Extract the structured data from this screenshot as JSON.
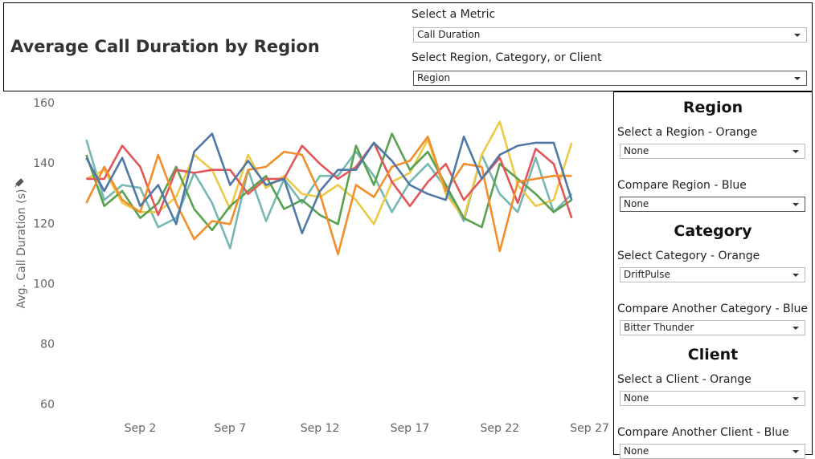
{
  "header": {
    "title": "Average Call Duration by Region"
  },
  "controls": [
    {
      "label": "Select a Metric",
      "value": "Call Duration"
    },
    {
      "label": "Select Region, Category, or Client",
      "value": "Region"
    }
  ],
  "panel": [
    {
      "heading": "Region",
      "filters": [
        {
          "label": "Select a Region - Orange",
          "value": "None"
        },
        {
          "label": "Compare Region - Blue",
          "value": "None"
        }
      ]
    },
    {
      "heading": "Category",
      "filters": [
        {
          "label": "Select Category - Orange",
          "value": "DriftPulse"
        },
        {
          "label": "Compare Another Category - Blue",
          "value": "Bitter Thunder"
        }
      ]
    },
    {
      "heading": "Client",
      "filters": [
        {
          "label": "Select a Client - Orange",
          "value": "None"
        },
        {
          "label": "Compare Another Client - Blue",
          "value": "None"
        }
      ]
    }
  ],
  "chart_data": {
    "type": "line",
    "y_label": "Avg. Call Duration (s)",
    "x": [
      "Aug 30",
      "Aug 31",
      "Sep 1",
      "Sep 2",
      "Sep 3",
      "Sep 4",
      "Sep 5",
      "Sep 6",
      "Sep 7",
      "Sep 8",
      "Sep 9",
      "Sep 10",
      "Sep 11",
      "Sep 12",
      "Sep 13",
      "Sep 14",
      "Sep 15",
      "Sep 16",
      "Sep 17",
      "Sep 18",
      "Sep 19",
      "Sep 20",
      "Sep 21",
      "Sep 22",
      "Sep 23",
      "Sep 24",
      "Sep 25",
      "Sep 26"
    ],
    "xlim": [
      "Aug 29",
      "Sep 28"
    ],
    "xticks": [
      "Sep 2",
      "Sep 7",
      "Sep 12",
      "Sep 17",
      "Sep 22",
      "Sep 27"
    ],
    "ylim": [
      57,
      162
    ],
    "yticks": [
      60,
      80,
      100,
      120,
      140,
      160
    ],
    "grid": false,
    "series": [
      {
        "color": "#76b7b2",
        "values": [
          148,
          128,
          133,
          132,
          119,
          122,
          137,
          127,
          112,
          138,
          121,
          135,
          127,
          136,
          136,
          144,
          136,
          124,
          134,
          140,
          132,
          121,
          143,
          130,
          124,
          142,
          124,
          130
        ]
      },
      {
        "color": "#edc948",
        "values": [
          135,
          138,
          127,
          124,
          124,
          129,
          143,
          138,
          125,
          143,
          132,
          136,
          130,
          129,
          133,
          128,
          120,
          134,
          137,
          148,
          130,
          122,
          143,
          154,
          133,
          126,
          128,
          147
        ]
      },
      {
        "color": "#59a14f",
        "values": [
          143,
          126,
          131,
          122,
          127,
          139,
          125,
          118,
          126,
          131,
          136,
          125,
          128,
          123,
          120,
          146,
          133,
          150,
          138,
          144,
          133,
          122,
          119,
          140,
          135,
          130,
          124,
          128
        ]
      },
      {
        "color": "#e15759",
        "values": [
          135,
          135,
          146,
          139,
          123,
          138,
          137,
          138,
          138,
          130,
          135,
          135,
          146,
          140,
          135,
          139,
          147,
          134,
          126,
          134,
          140,
          128,
          135,
          142,
          127,
          145,
          140,
          122
        ]
      },
      {
        "color": "#f28e2b",
        "values": [
          127,
          139,
          128,
          124,
          143,
          127,
          115,
          121,
          120,
          138,
          139,
          144,
          143,
          130,
          110,
          133,
          129,
          139,
          141,
          149,
          131,
          140,
          139,
          111,
          134,
          135,
          136,
          136
        ]
      },
      {
        "color": "#4e79a7",
        "values": [
          142,
          131,
          142,
          126,
          133,
          120,
          144,
          150,
          133,
          141,
          133,
          135,
          117,
          131,
          138,
          138,
          147,
          141,
          133,
          130,
          128,
          149,
          135,
          143,
          146,
          147,
          147,
          128
        ]
      }
    ]
  }
}
